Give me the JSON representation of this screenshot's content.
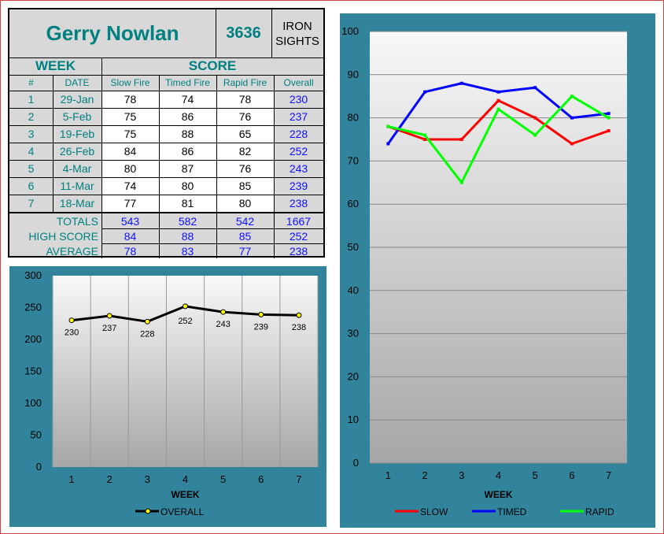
{
  "header": {
    "name": "Gerry Nowlan",
    "number": "3636",
    "sight_line1": "IRON",
    "sight_line2": "SIGHTS",
    "week_label": "WEEK",
    "score_label": "SCORE"
  },
  "columns": [
    "#",
    "DATE",
    "Slow Fire",
    "Timed Fire",
    "Rapid Fire",
    "Overall"
  ],
  "rows": [
    {
      "n": "1",
      "date": "29-Jan",
      "slow": "78",
      "timed": "74",
      "rapid": "78",
      "overall": "230"
    },
    {
      "n": "2",
      "date": "5-Feb",
      "slow": "75",
      "timed": "86",
      "rapid": "76",
      "overall": "237"
    },
    {
      "n": "3",
      "date": "19-Feb",
      "slow": "75",
      "timed": "88",
      "rapid": "65",
      "overall": "228"
    },
    {
      "n": "4",
      "date": "26-Feb",
      "slow": "84",
      "timed": "86",
      "rapid": "82",
      "overall": "252"
    },
    {
      "n": "5",
      "date": "4-Mar",
      "slow": "80",
      "timed": "87",
      "rapid": "76",
      "overall": "243"
    },
    {
      "n": "6",
      "date": "11-Mar",
      "slow": "74",
      "timed": "80",
      "rapid": "85",
      "overall": "239"
    },
    {
      "n": "7",
      "date": "18-Mar",
      "slow": "77",
      "timed": "81",
      "rapid": "80",
      "overall": "238"
    }
  ],
  "footer": [
    {
      "label": "TOTALS",
      "slow": "543",
      "timed": "582",
      "rapid": "542",
      "overall": "1667"
    },
    {
      "label": "HIGH SCORE",
      "slow": "84",
      "timed": "88",
      "rapid": "85",
      "overall": "252"
    },
    {
      "label": "AVERAGE",
      "slow": "78",
      "timed": "83",
      "rapid": "77",
      "overall": "238"
    }
  ],
  "colors": {
    "panel": "#31849b",
    "slow": "#ff0000",
    "timed": "#0000ff",
    "rapid": "#00ff00",
    "overall": "#000000",
    "marker": "#ffff00"
  },
  "chart_data": [
    {
      "type": "line",
      "title": "",
      "xlabel": "WEEK",
      "ylabel": "",
      "x": [
        1,
        2,
        3,
        4,
        5,
        6,
        7
      ],
      "ylim": [
        0,
        300
      ],
      "yticks": [
        0,
        50,
        100,
        150,
        200,
        250,
        300
      ],
      "series": [
        {
          "name": "OVERALL",
          "values": [
            230,
            237,
            228,
            252,
            243,
            239,
            238
          ],
          "color": "#000000",
          "marker_color": "#ffff00",
          "data_labels": true
        }
      ],
      "legend": "bottom",
      "grid": "vertical"
    },
    {
      "type": "line",
      "title": "",
      "xlabel": "WEEK",
      "ylabel": "",
      "x": [
        1,
        2,
        3,
        4,
        5,
        6,
        7
      ],
      "ylim": [
        0,
        100
      ],
      "yticks": [
        0,
        10,
        20,
        30,
        40,
        50,
        60,
        70,
        80,
        90,
        100
      ],
      "series": [
        {
          "name": "SLOW",
          "values": [
            78,
            75,
            75,
            84,
            80,
            74,
            77
          ],
          "color": "#ff0000"
        },
        {
          "name": "TIMED",
          "values": [
            74,
            86,
            88,
            86,
            87,
            80,
            81
          ],
          "color": "#0000ff"
        },
        {
          "name": "RAPID",
          "values": [
            78,
            76,
            65,
            82,
            76,
            85,
            80
          ],
          "color": "#00ff00"
        }
      ],
      "legend": "bottom",
      "grid": "horizontal"
    }
  ]
}
